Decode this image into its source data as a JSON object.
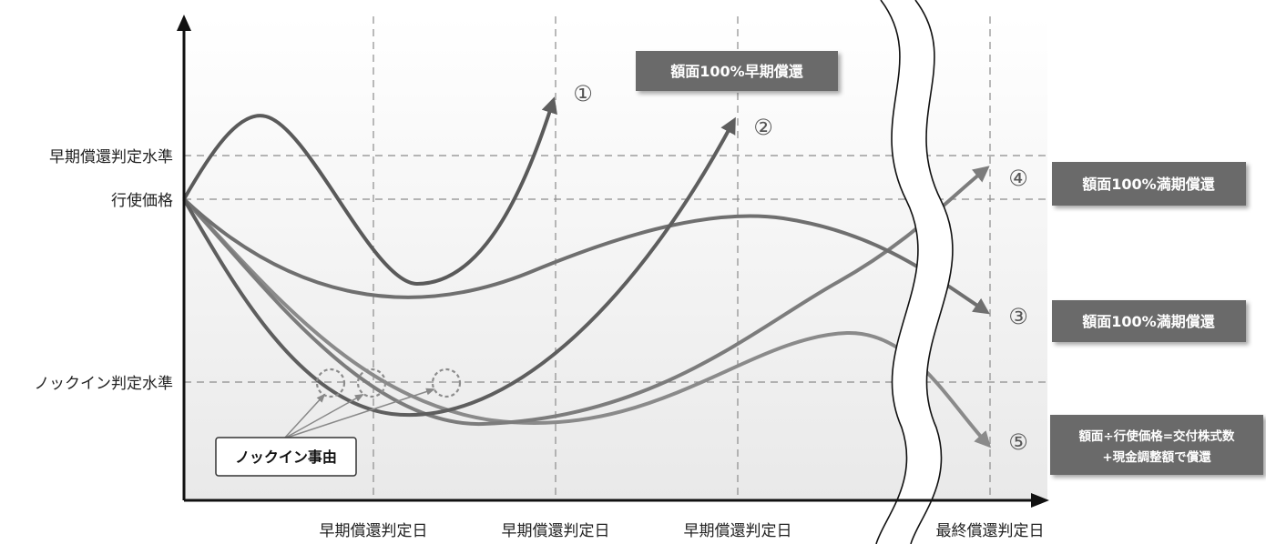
{
  "y_axis_labels": {
    "early_redemption_level": "早期償還判定水準",
    "strike_price": "行使価格",
    "knock_in_level": "ノックイン判定水準"
  },
  "x_axis_labels": [
    "早期償還判定日",
    "早期償還判定日",
    "早期償還判定日",
    "最終償還判定日"
  ],
  "scenarios": [
    {
      "id": "①",
      "color": "#5a5a5a"
    },
    {
      "id": "②",
      "color": "#5e5e5e"
    },
    {
      "id": "③",
      "color": "#6f6f6f"
    },
    {
      "id": "④",
      "color": "#7c7c7c"
    },
    {
      "id": "⑤",
      "color": "#8a8a8a"
    }
  ],
  "callouts": {
    "early_redemption": "額面100%早期償還",
    "maturity_4": "額面100%満期償還",
    "maturity_3": "額面100%満期償還",
    "stock_line1": "額面÷行使価格=交付株式数",
    "stock_line2": "+現金調整額で償還"
  },
  "knock_in_event": "ノックイン事由",
  "colors": {
    "callout_bg": "#6a6a6a",
    "plot_bg_top": "#ffffff",
    "plot_bg_bottom": "#ececec",
    "axis": "#111111",
    "grid": "#8c8c8c"
  }
}
